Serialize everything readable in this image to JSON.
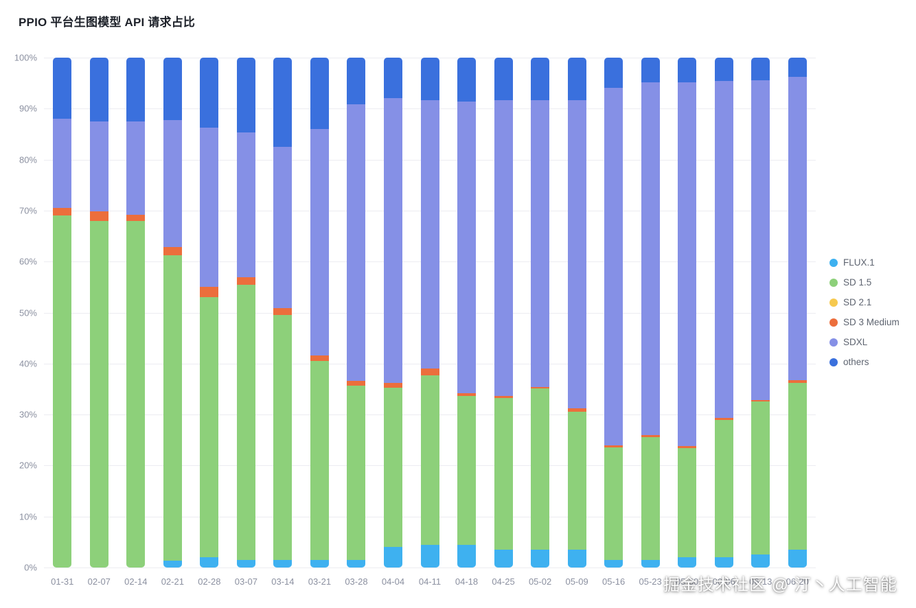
{
  "title": "PPIO 平台生图模型 API 请求占比",
  "watermark": "掘金技术社区 @ 汀丶人工智能",
  "chart_data": {
    "type": "bar",
    "stacked": true,
    "percent": true,
    "title": "PPIO 平台生图模型 API 请求占比",
    "xlabel": "",
    "ylabel": "",
    "ylim": [
      0,
      100
    ],
    "grid": true,
    "legend_position": "right",
    "y_ticks": [
      "0%",
      "10%",
      "20%",
      "30%",
      "40%",
      "50%",
      "60%",
      "70%",
      "80%",
      "90%",
      "100%"
    ],
    "categories": [
      "01-31",
      "02-07",
      "02-14",
      "02-21",
      "02-28",
      "03-07",
      "03-14",
      "03-21",
      "03-28",
      "04-04",
      "04-11",
      "04-18",
      "04-25",
      "05-02",
      "05-09",
      "05-16",
      "05-23",
      "05-30",
      "06-06",
      "06-13",
      "06-20"
    ],
    "series": [
      {
        "name": "FLUX.1",
        "color": "#3eb1f0",
        "values": [
          0,
          0,
          0,
          1.3,
          2,
          1.5,
          1.5,
          1.5,
          1.5,
          4,
          4.5,
          4.5,
          3.5,
          3.5,
          3.5,
          1.5,
          1.5,
          2,
          2,
          2.5,
          3.5
        ]
      },
      {
        "name": "SD 1.5",
        "color": "#8dd07a",
        "values": [
          69,
          68,
          68,
          60,
          51,
          54,
          48,
          39,
          34.2,
          31.3,
          33.2,
          29.1,
          29.7,
          31.6,
          27.1,
          22.1,
          24.1,
          21.4,
          27,
          30.1,
          32.7
        ]
      },
      {
        "name": "SD 2.1",
        "color": "#f6c94f",
        "values": [
          0,
          0,
          0,
          0,
          0,
          0,
          0,
          0,
          0,
          0,
          0,
          0,
          0,
          0,
          0,
          0,
          0,
          0,
          0,
          0,
          0
        ]
      },
      {
        "name": "SD 3 Medium",
        "color": "#ec6e3c",
        "values": [
          1.5,
          1.8,
          1.2,
          1.5,
          2,
          1.4,
          1.4,
          1.1,
          0.9,
          0.9,
          1.3,
          0.6,
          0.4,
          0.3,
          0.6,
          0.3,
          0.4,
          0.4,
          0.4,
          0.3,
          0.5
        ]
      },
      {
        "name": "SDXL",
        "color": "#8590e6",
        "values": [
          17.5,
          17.7,
          18.3,
          25,
          31.3,
          28.4,
          31.6,
          44.4,
          54.2,
          55.9,
          52.7,
          57.2,
          58.1,
          56.3,
          60.5,
          70.2,
          69.2,
          71.4,
          66,
          62.7,
          59.5
        ]
      },
      {
        "name": "others",
        "color": "#3a70dd",
        "values": [
          12,
          12.5,
          12.5,
          12.2,
          13.7,
          14.7,
          17.5,
          14,
          9.2,
          7.9,
          8.3,
          8.6,
          8.3,
          8.3,
          8.3,
          5.9,
          4.8,
          4.8,
          4.6,
          4.4,
          3.8
        ]
      }
    ]
  }
}
